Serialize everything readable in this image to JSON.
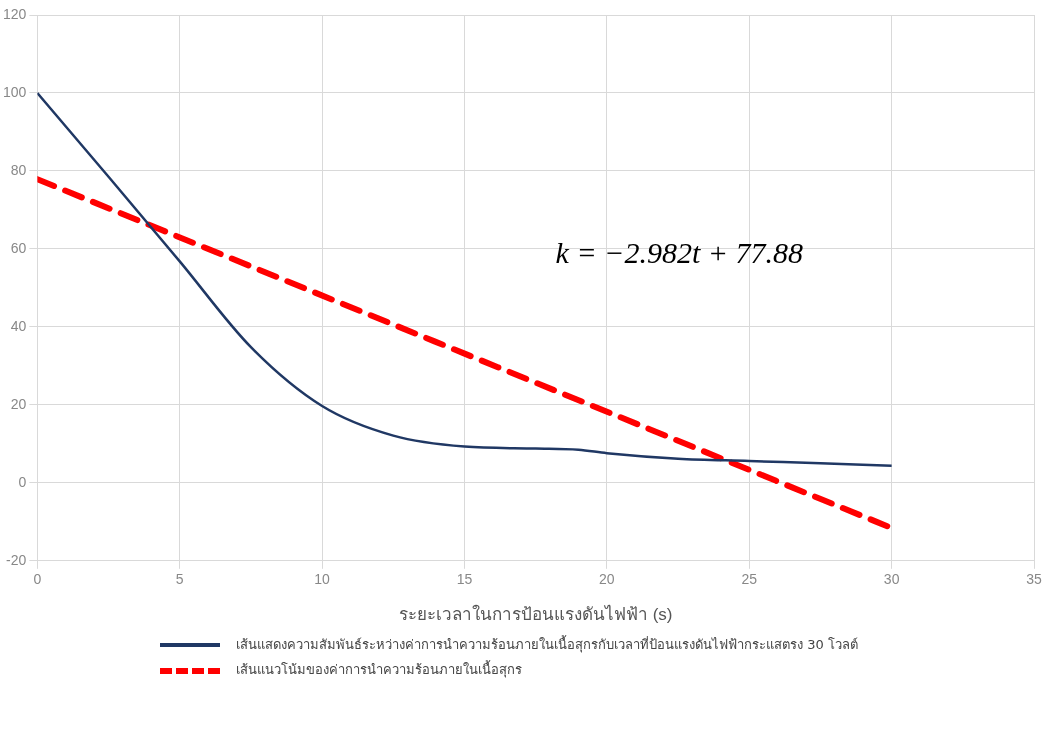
{
  "chart_data": {
    "type": "line",
    "xlabel": "ระยะเวลาในการป้อนแรงดันไฟฟ้า (s)",
    "xlim": [
      0,
      35
    ],
    "xticks": [
      0,
      5,
      10,
      15,
      20,
      25,
      30,
      35
    ],
    "ylim": [
      -20,
      120
    ],
    "yticks": [
      -20,
      0,
      20,
      40,
      60,
      80,
      100,
      120
    ],
    "grid": true,
    "legend": "bottom",
    "marker": "none",
    "annotations": [
      "k = −2.982t + 77.88"
    ],
    "series": [
      {
        "name": "เส้นแสดงความสัมพันธ์ระหว่างค่าการนำความร้อนภายในเนื้อสุกรกับเวลาที่ป้อนแรงดันไฟฟ้ากระแสตรง 30 โวลต์",
        "color": "#203864",
        "line_style": "solid",
        "x": [
          0,
          2.5,
          5,
          7.5,
          10,
          12.5,
          15,
          17.5,
          19,
          20,
          22.5,
          25,
          27.5,
          30
        ],
        "values": [
          100,
          78.5,
          56.8,
          34.8,
          19.7,
          12.1,
          9.3,
          8.8,
          8.5,
          7.6,
          6.2,
          5.6,
          5,
          4.4
        ]
      },
      {
        "name": "เส้นแนวโน้มของค่าการนำความร้อนภายในเนื้อสุกร",
        "color": "#ff0000",
        "line_style": "dashed",
        "x": [
          0,
          30
        ],
        "values": [
          77.88,
          -11.58
        ]
      }
    ]
  }
}
